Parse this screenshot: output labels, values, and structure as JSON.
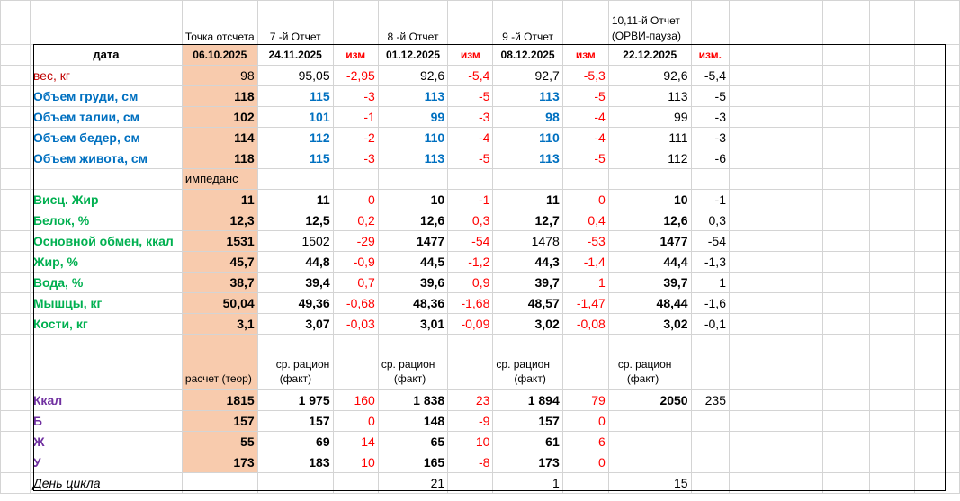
{
  "top_headers": {
    "start": "Точка отсчета",
    "r7": "7 -й Отчет",
    "r8": "8 -й Отчет",
    "r9": "9 -й Отчет",
    "r10_line1": "10,11-й Отчет",
    "r10_line2": "(ОРВИ-пауза)"
  },
  "header_row": {
    "label": "дата",
    "d0": "06.10.2025",
    "d1": "24.11.2025",
    "c1": "изм",
    "d2": "01.12.2025",
    "c2": "изм",
    "d3": "08.12.2025",
    "c3": "изм",
    "d4": "22.12.2025",
    "c4": "изм."
  },
  "rows": [
    {
      "label": "вес, кг",
      "v": [
        "98",
        "95,05",
        "-2,95",
        "92,6",
        "-5,4",
        "92,7",
        "-5,3",
        "92,6",
        "-5,4"
      ]
    },
    {
      "label": "Объем груди, см",
      "v": [
        "118",
        "115",
        "-3",
        "113",
        "-5",
        "113",
        "-5",
        "113",
        "-5"
      ]
    },
    {
      "label": "Объем талии, см",
      "v": [
        "102",
        "101",
        "-1",
        "99",
        "-3",
        "98",
        "-4",
        "99",
        "-3"
      ]
    },
    {
      "label": "Объем бедер, см",
      "v": [
        "114",
        "112",
        "-2",
        "110",
        "-4",
        "110",
        "-4",
        "111",
        "-3"
      ]
    },
    {
      "label": "Объем живота, см",
      "v": [
        "118",
        "115",
        "-3",
        "113",
        "-5",
        "113",
        "-5",
        "112",
        "-6"
      ]
    }
  ],
  "impedance_label": "импеданс",
  "rows2": [
    {
      "label": "Висц. Жир",
      "v": [
        "11",
        "11",
        "0",
        "10",
        "-1",
        "11",
        "0",
        "10",
        "-1"
      ]
    },
    {
      "label": "Белок, %",
      "v": [
        "12,3",
        "12,5",
        "0,2",
        "12,6",
        "0,3",
        "12,7",
        "0,4",
        "12,6",
        "0,3"
      ]
    },
    {
      "label": "Основной обмен, ккал",
      "v": [
        "1531",
        "1502",
        "-29",
        "1477",
        "-54",
        "1478",
        "-53",
        "1477",
        "-54"
      ]
    },
    {
      "label": "Жир, %",
      "v": [
        "45,7",
        "44,8",
        "-0,9",
        "44,5",
        "-1,2",
        "44,3",
        "-1,4",
        "44,4",
        "-1,3"
      ]
    },
    {
      "label": "Вода, %",
      "v": [
        "38,7",
        "39,4",
        "0,7",
        "39,6",
        "0,9",
        "39,7",
        "1",
        "39,7",
        "1"
      ]
    },
    {
      "label": "Мышцы, кг",
      "v": [
        "50,04",
        "49,36",
        "-0,68",
        "48,36",
        "-1,68",
        "48,57",
        "-1,47",
        "48,44",
        "-1,6"
      ]
    },
    {
      "label": "Кости, кг",
      "v": [
        "3,1",
        "3,07",
        "-0,03",
        "3,01",
        "-0,09",
        "3,02",
        "-0,08",
        "3,02",
        "-0,1"
      ]
    }
  ],
  "ration": {
    "calc": "расчет (теор)",
    "avg_l1": "ср. рацион",
    "avg_l2": "(факт)"
  },
  "rows3": [
    {
      "label": "Ккал",
      "v": [
        "1815",
        "1 975",
        "160",
        "1 838",
        "23",
        "1 894",
        "79",
        "2050",
        "235"
      ]
    },
    {
      "label": "Б",
      "v": [
        "157",
        "157",
        "0",
        "148",
        "-9",
        "157",
        "0",
        "",
        ""
      ]
    },
    {
      "label": "Ж",
      "v": [
        "55",
        "69",
        "14",
        "65",
        "10",
        "61",
        "6",
        "",
        ""
      ]
    },
    {
      "label": "У",
      "v": [
        "173",
        "183",
        "10",
        "165",
        "-8",
        "173",
        "0",
        "",
        ""
      ]
    }
  ],
  "cycle": {
    "label": "День цикла",
    "v": [
      "",
      "",
      "",
      "21",
      "",
      "1",
      "",
      "15",
      ""
    ]
  }
}
